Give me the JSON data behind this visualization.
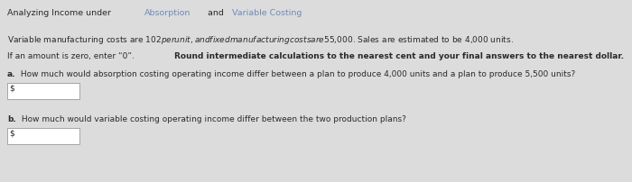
{
  "title_normal": "Analyzing Income under ",
  "title_link1": "Absorption",
  "title_between": " and ",
  "title_link2": "Variable Costing",
  "line1": "Variable manufacturing costs are $102 per unit, and fixed manufacturing costs are $55,000. Sales are estimated to be 4,000 units.",
  "line2_normal1": "If an amount is zero, enter “0”. ",
  "line2_bold": "Round intermediate calculations to the nearest cent and your final answers to the nearest dollar.",
  "qa_label": "a.",
  "qa_text": " How much would absorption costing operating income differ between a plan to produce 4,000 units and a plan to produce 5,500 units?",
  "qb_label": "b.",
  "qb_text": " How much would variable costing operating income differ between the two production plans?",
  "dollar_sign": "$",
  "bg_color": "#dcdcdc",
  "text_color": "#2a2a2a",
  "link_color": "#6b8cba",
  "box_color": "#ffffff",
  "box_border": "#999999",
  "font_size_title": 6.8,
  "font_size_body": 6.5
}
